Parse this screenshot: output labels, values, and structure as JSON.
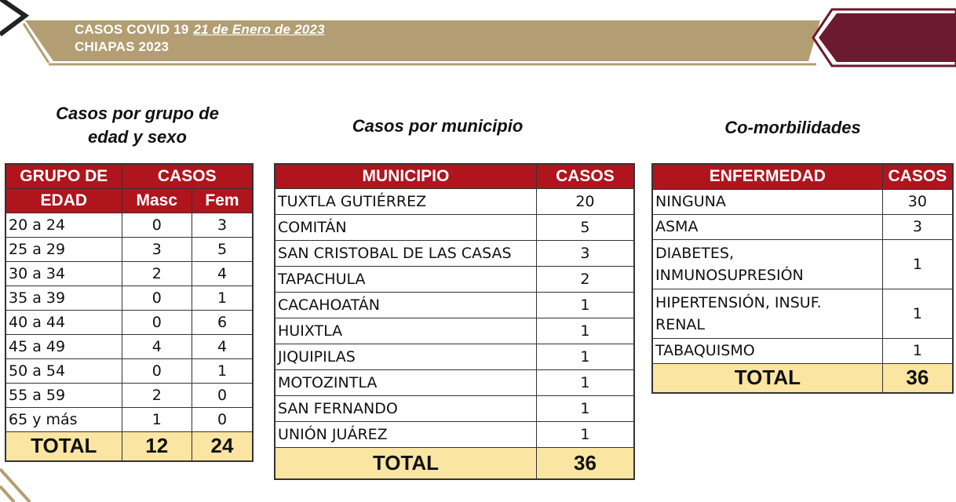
{
  "header": {
    "line1": "CASOS COVID 19",
    "date": "21 de Enero de 2023",
    "line2": "CHIAPAS 2023",
    "colors": {
      "gold": "#b29e72",
      "maroon": "#6b1a2f",
      "chevron": "#222222"
    }
  },
  "age_section": {
    "title_line1": "Casos por grupo de",
    "title_line2": "edad y sexo",
    "headers": {
      "group_line1": "GRUPO DE",
      "group_line2": "EDAD",
      "cases": "CASOS",
      "masc": "Masc",
      "fem": "Fem"
    },
    "rows": [
      {
        "group": "20 a 24",
        "masc": "0",
        "fem": "3"
      },
      {
        "group": "25 a 29",
        "masc": "3",
        "fem": "5"
      },
      {
        "group": "30 a 34",
        "masc": "2",
        "fem": "4"
      },
      {
        "group": "35 a 39",
        "masc": "0",
        "fem": "1"
      },
      {
        "group": "40 a 44",
        "masc": "0",
        "fem": "6"
      },
      {
        "group": "45 a 49",
        "masc": "4",
        "fem": "4"
      },
      {
        "group": "50 a 54",
        "masc": "0",
        "fem": "1"
      },
      {
        "group": "55 a 59",
        "masc": "2",
        "fem": "0"
      },
      {
        "group": "65 y más",
        "masc": "1",
        "fem": "0"
      }
    ],
    "total": {
      "label": "TOTAL",
      "masc": "12",
      "fem": "24"
    }
  },
  "municipality_section": {
    "title": "Casos por municipio",
    "headers": {
      "municipality": "MUNICIPIO",
      "cases": "CASOS"
    },
    "rows": [
      {
        "name": "TUXTLA GUTIÉRREZ",
        "cases": "20"
      },
      {
        "name": "COMITÁN",
        "cases": "5"
      },
      {
        "name": "SAN CRISTOBAL DE LAS CASAS",
        "cases": "3"
      },
      {
        "name": "TAPACHULA",
        "cases": "2"
      },
      {
        "name": "CACAHOATÁN",
        "cases": "1"
      },
      {
        "name": "HUIXTLA",
        "cases": "1"
      },
      {
        "name": "JIQUIPILAS",
        "cases": "1"
      },
      {
        "name": "MOTOZINTLA",
        "cases": "1"
      },
      {
        "name": "SAN FERNANDO",
        "cases": "1"
      },
      {
        "name": "UNIÓN JUÁREZ",
        "cases": "1"
      }
    ],
    "total": {
      "label": "TOTAL",
      "cases": "36"
    }
  },
  "comorbidity_section": {
    "title": "Co-morbilidades",
    "headers": {
      "disease": "ENFERMEDAD",
      "cases": "CASOS"
    },
    "rows": [
      {
        "line1": "NINGUNA",
        "line2": "",
        "cases": "30"
      },
      {
        "line1": "ASMA",
        "line2": "",
        "cases": "3"
      },
      {
        "line1": "DIABETES,",
        "line2": "INMUNOSUPRESIÓN",
        "cases": "1"
      },
      {
        "line1": "HIPERTENSIÓN, INSUF.",
        "line2": "RENAL",
        "cases": "1"
      },
      {
        "line1": "TABAQUISMO",
        "line2": "",
        "cases": "1"
      }
    ],
    "total": {
      "label": "TOTAL",
      "cases": "36"
    }
  }
}
